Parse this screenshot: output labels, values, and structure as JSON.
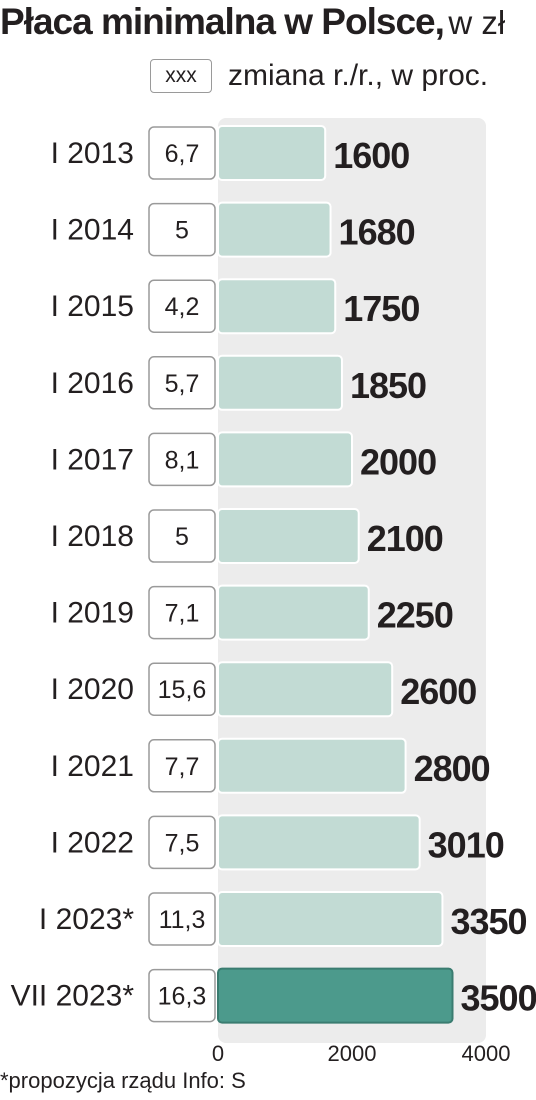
{
  "chart_data": {
    "type": "bar",
    "orientation": "horizontal",
    "title": "Płaca minimalna w Polsce,",
    "unit": "w zł",
    "legend": {
      "box_label": "xxx",
      "text": "zmiana r./r., w proc."
    },
    "categories": [
      "I 2013",
      "I 2014",
      "I 2015",
      "I 2016",
      "I 2017",
      "I 2018",
      "I 2019",
      "I 2020",
      "I 2021",
      "I 2022",
      "I 2023*",
      "VII 2023*"
    ],
    "series": [
      {
        "values": [
          1600,
          1680,
          1750,
          1850,
          2000,
          2100,
          2250,
          2600,
          2800,
          3010,
          3350,
          3500
        ]
      }
    ],
    "changes": [
      "6,7",
      "5",
      "4,2",
      "5,7",
      "8,1",
      "5",
      "7,1",
      "15,6",
      "7,7",
      "7,5",
      "11,3",
      "16,3"
    ],
    "xlim": [
      0,
      4000
    ],
    "xticks": [
      "0",
      "2000",
      "4000"
    ],
    "highlight_index": 11,
    "colors": {
      "bar": "#c2dbd4",
      "highlight": "#4c9a8c",
      "plot_bg": "#ececec",
      "box_border": "#9a9a9a"
    }
  },
  "footnote": "*propozycja rządu  Info: S"
}
